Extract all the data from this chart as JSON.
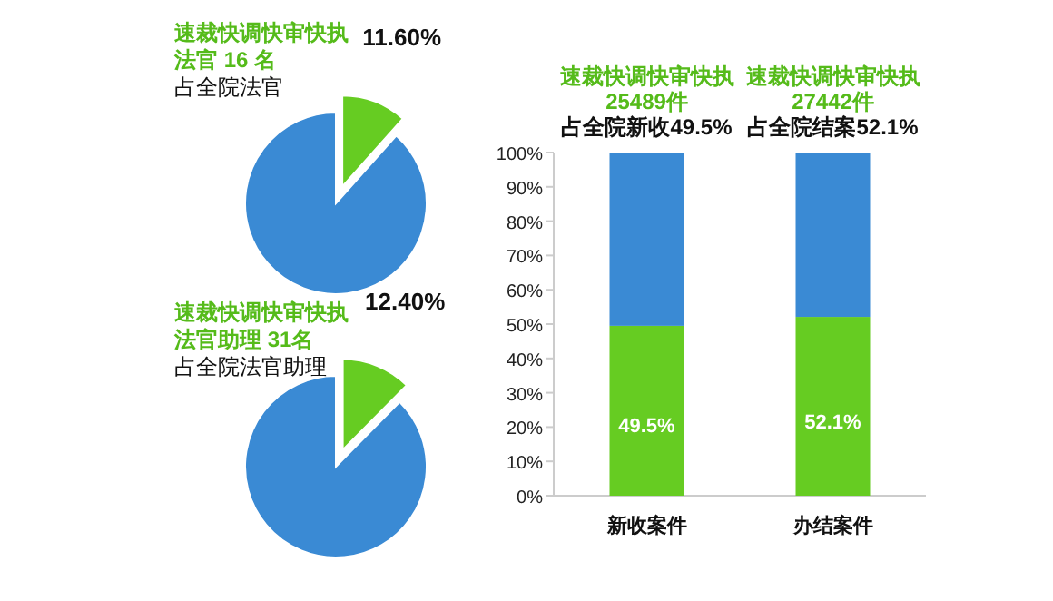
{
  "chart_data": [
    {
      "type": "pie",
      "title": "速裁快调快审快执",
      "subtitle": "法官 16 名",
      "annotations": [
        "占全院法官"
      ],
      "categories": [
        null,
        null
      ],
      "values": [
        11.6,
        88.4
      ],
      "colors": [
        "#66cc22",
        "#3a8ad4"
      ],
      "value_labels": [
        "11.60%",
        null
      ]
    },
    {
      "type": "pie",
      "title": "速裁快调快审快执",
      "subtitle": "法官助理 31名",
      "annotations": [
        "占全院法官助理"
      ],
      "categories": [
        null,
        null
      ],
      "values": [
        12.4,
        87.6
      ],
      "colors": [
        "#66cc22",
        "#3a8ad4"
      ],
      "value_labels": [
        "12.40%",
        null
      ]
    },
    {
      "type": "bar",
      "stacked": true,
      "categories": [
        "新收案件",
        "办结案件"
      ],
      "series": [
        {
          "color": "#66cc22",
          "values": [
            49.5,
            52.1
          ],
          "value_labels": [
            "49.5%",
            "52.1%"
          ]
        },
        {
          "color": "#3a8ad4",
          "values": [
            50.5,
            47.9
          ]
        }
      ],
      "ylim": [
        0,
        100
      ],
      "yticks": [
        {
          "value": 0,
          "label": "0%"
        },
        {
          "value": 10,
          "label": "10%"
        },
        {
          "value": 20,
          "label": "20%"
        },
        {
          "value": 30,
          "label": "30%"
        },
        {
          "value": 40,
          "label": "40%"
        },
        {
          "value": 50,
          "label": "50%"
        },
        {
          "value": 60,
          "label": "60%"
        },
        {
          "value": 70,
          "label": "70%"
        },
        {
          "value": 80,
          "label": "80%"
        },
        {
          "value": 90,
          "label": "90%"
        },
        {
          "value": 100,
          "label": "100%"
        }
      ],
      "annotations": [
        "速裁快调快审快执",
        "25489件",
        "占全院新收49.5%",
        "速裁快调快审快执",
        "27442件",
        "占全院结案52.1%"
      ]
    }
  ]
}
